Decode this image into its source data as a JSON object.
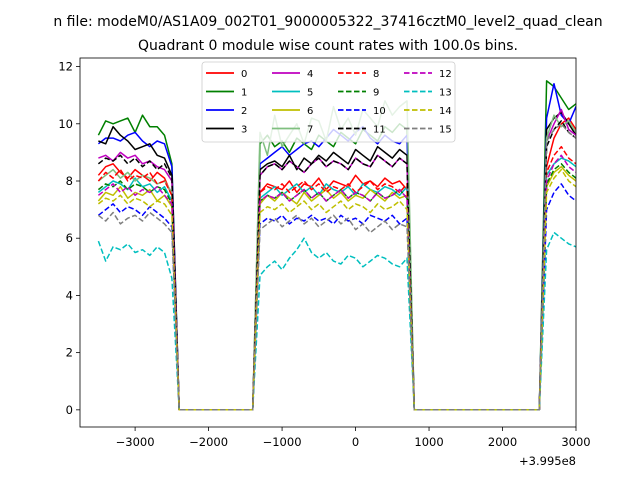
{
  "figure": {
    "suptitle": "n file: modeM0/AS1A09_002T01_9000005322_37416cztM0_level2_quad_clean",
    "title": "Quadrant 0 module wise count rates with 100.0s bins.",
    "offset_label": "+3.995e8"
  },
  "chart_data": {
    "type": "line",
    "title": "Quadrant 0 module wise count rates with 100.0s bins.",
    "xlabel": "",
    "ylabel": "",
    "x_offset": 399500000,
    "xlim": [
      -3750,
      3000
    ],
    "ylim": [
      -0.6,
      12.3
    ],
    "xticks": [
      -3000,
      -2000,
      -1000,
      0,
      1000,
      2000,
      3000
    ],
    "xtick_labels": [
      "−3000",
      "−2000",
      "−1000",
      "0",
      "1000",
      "2000",
      "3000"
    ],
    "yticks": [
      0,
      2,
      4,
      6,
      8,
      10,
      12
    ],
    "ytick_labels": [
      "0",
      "2",
      "4",
      "6",
      "8",
      "10",
      "12"
    ],
    "grid": false,
    "legend_position": "top-center",
    "legend_columns": 4,
    "segments": [
      {
        "x_start": -3500,
        "count": 11
      },
      {
        "x_start": -1300,
        "count": 21
      },
      {
        "x_start": 2600,
        "count": 8
      }
    ],
    "series": [
      {
        "name": "0",
        "color": "#ff0000",
        "dash": "solid",
        "values": [
          8.2,
          8.5,
          8.6,
          8.3,
          8.1,
          8.4,
          8.2,
          8.0,
          8.3,
          8.1,
          7.5,
          7.6,
          7.9,
          7.8,
          7.7,
          8.0,
          7.6,
          7.9,
          7.8,
          8.1,
          7.7,
          8.0,
          7.9,
          7.8,
          8.2,
          7.9,
          8.0,
          7.8,
          8.1,
          7.9,
          8.0,
          7.7,
          8.5,
          9.5,
          10.0,
          10.2,
          9.8,
          9.0,
          8.8,
          8.5
        ]
      },
      {
        "name": "1",
        "color": "#008000",
        "dash": "solid",
        "values": [
          9.6,
          10.1,
          10.0,
          10.1,
          10.2,
          9.7,
          10.3,
          9.9,
          9.9,
          9.6,
          8.6,
          9.3,
          9.6,
          9.2,
          9.4,
          9.0,
          9.5,
          9.3,
          9.1,
          9.6,
          9.4,
          9.2,
          9.7,
          9.5,
          9.3,
          9.8,
          9.6,
          9.4,
          9.9,
          9.7,
          10.0,
          9.8,
          11.5,
          11.3,
          10.9,
          10.5,
          10.7,
          11.1,
          11.6,
          10.8
        ]
      },
      {
        "name": "2",
        "color": "#0000ff",
        "dash": "solid",
        "values": [
          9.3,
          9.5,
          9.5,
          9.4,
          9.6,
          9.7,
          9.4,
          9.2,
          9.4,
          9.3,
          8.5,
          8.6,
          8.8,
          9.0,
          9.2,
          8.9,
          9.1,
          9.3,
          9.4,
          9.2,
          9.5,
          9.8,
          9.6,
          9.4,
          9.7,
          9.9,
          9.5,
          9.3,
          9.6,
          9.4,
          9.3,
          9.6,
          10.2,
          11.4,
          10.3,
          10.0,
          10.6,
          10.4,
          10.1,
          9.8
        ]
      },
      {
        "name": "3",
        "color": "#000000",
        "dash": "solid",
        "values": [
          9.4,
          9.3,
          9.9,
          9.6,
          9.4,
          9.1,
          9.2,
          9.3,
          8.9,
          8.8,
          8.2,
          8.4,
          8.6,
          8.7,
          8.5,
          8.9,
          8.4,
          8.8,
          8.6,
          8.9,
          8.7,
          9.0,
          8.8,
          8.6,
          9.1,
          8.9,
          8.7,
          9.2,
          9.0,
          8.8,
          9.1,
          8.9,
          9.8,
          10.2,
          10.4,
          10.0,
          9.6,
          9.4,
          9.2,
          9.0
        ]
      },
      {
        "name": "4",
        "color": "#bf00bf",
        "dash": "solid",
        "values": [
          8.8,
          8.9,
          8.7,
          9.0,
          8.8,
          8.9,
          8.6,
          8.7,
          8.5,
          8.4,
          8.0,
          8.2,
          8.5,
          8.6,
          8.4,
          8.7,
          8.5,
          8.3,
          8.6,
          8.8,
          8.5,
          8.7,
          8.6,
          8.4,
          8.8,
          8.6,
          8.5,
          8.9,
          8.7,
          8.5,
          8.8,
          8.6,
          9.4,
          10.0,
          10.5,
          9.8,
          9.6,
          10.1,
          9.9,
          9.5
        ]
      },
      {
        "name": "5",
        "color": "#00bfbf",
        "dash": "solid",
        "values": [
          7.6,
          7.8,
          8.0,
          7.9,
          7.7,
          8.1,
          7.8,
          7.9,
          7.6,
          7.8,
          7.3,
          7.4,
          7.6,
          7.8,
          7.5,
          7.7,
          7.9,
          7.6,
          7.8,
          7.5,
          7.9,
          7.7,
          7.6,
          7.8,
          7.5,
          7.9,
          7.7,
          7.6,
          7.8,
          7.7,
          7.5,
          7.8,
          8.2,
          8.6,
          8.8,
          8.7,
          8.5,
          8.8,
          8.7,
          8.4
        ]
      },
      {
        "name": "6",
        "color": "#bfbf00",
        "dash": "solid",
        "values": [
          7.3,
          7.6,
          7.5,
          7.8,
          7.4,
          7.6,
          7.5,
          7.7,
          7.3,
          7.5,
          7.1,
          7.2,
          7.5,
          7.3,
          7.6,
          7.4,
          7.2,
          7.6,
          7.3,
          7.5,
          7.7,
          7.4,
          7.6,
          7.3,
          7.5,
          7.4,
          7.7,
          7.5,
          7.3,
          7.6,
          7.4,
          7.5,
          7.8,
          8.3,
          8.5,
          8.2,
          8.0,
          8.4,
          8.1,
          7.9
        ]
      },
      {
        "name": "7",
        "color": "#7fbf7f",
        "dash": "solid",
        "values": [
          8.0,
          8.2,
          8.4,
          8.1,
          8.3,
          8.0,
          8.2,
          8.1,
          7.9,
          8.0,
          7.6,
          9.7,
          8.9,
          10.3,
          9.2,
          9.6,
          10.0,
          9.3,
          10.2,
          10.1,
          9.4,
          10.6,
          9.8,
          10.2,
          9.6,
          10.5,
          10.2,
          9.9,
          10.8,
          10.3,
          10.6,
          10.8,
          9.5,
          10.3,
          9.9,
          10.1,
          9.7,
          10.0,
          9.8,
          9.6
        ]
      },
      {
        "name": "8",
        "color": "#ff0000",
        "dash": "dashed",
        "values": [
          8.0,
          8.3,
          8.1,
          8.4,
          8.0,
          8.2,
          8.1,
          8.3,
          7.9,
          8.0,
          7.5,
          7.6,
          7.8,
          7.7,
          7.9,
          7.6,
          7.8,
          8.0,
          7.7,
          7.9,
          7.6,
          7.8,
          7.7,
          7.9,
          7.6,
          7.8,
          8.0,
          7.7,
          7.9,
          7.8,
          7.6,
          7.9,
          8.3,
          8.9,
          9.2,
          8.8,
          8.6,
          8.9,
          8.5,
          8.3
        ]
      },
      {
        "name": "9",
        "color": "#008000",
        "dash": "dashed",
        "values": [
          7.7,
          7.9,
          7.8,
          8.0,
          7.7,
          7.9,
          7.8,
          7.6,
          7.8,
          7.7,
          7.2,
          7.3,
          7.5,
          7.4,
          7.6,
          7.3,
          7.5,
          7.7,
          7.4,
          7.6,
          7.3,
          7.5,
          7.7,
          7.4,
          7.6,
          7.5,
          7.3,
          7.6,
          7.4,
          7.5,
          7.7,
          7.4,
          7.9,
          8.4,
          8.6,
          8.3,
          8.1,
          8.4,
          8.2,
          8.0
        ]
      },
      {
        "name": "10",
        "color": "#0000ff",
        "dash": "dashed",
        "values": [
          6.8,
          7.0,
          7.2,
          6.9,
          7.1,
          7.0,
          6.8,
          7.1,
          6.9,
          6.7,
          6.4,
          6.5,
          6.7,
          6.6,
          6.8,
          6.5,
          6.7,
          6.6,
          6.8,
          6.6,
          6.7,
          6.5,
          6.8,
          6.6,
          6.7,
          6.5,
          6.8,
          6.7,
          6.6,
          6.8,
          6.5,
          6.7,
          7.0,
          7.6,
          7.9,
          7.5,
          7.3,
          7.6,
          7.4,
          7.1
        ]
      },
      {
        "name": "11",
        "color": "#000000",
        "dash": "dashed",
        "values": [
          8.6,
          8.8,
          8.7,
          8.9,
          8.6,
          8.8,
          8.5,
          8.7,
          8.4,
          8.6,
          8.1,
          8.2,
          8.5,
          8.6,
          8.4,
          8.7,
          8.5,
          8.3,
          8.6,
          8.8,
          8.5,
          8.7,
          8.6,
          8.4,
          8.8,
          8.6,
          8.5,
          8.9,
          8.7,
          8.5,
          8.8,
          8.6,
          9.2,
          9.8,
          10.1,
          9.7,
          9.5,
          9.9,
          9.6,
          9.3
        ]
      },
      {
        "name": "12",
        "color": "#bf00bf",
        "dash": "dashed",
        "values": [
          7.5,
          7.7,
          7.9,
          7.6,
          7.8,
          7.5,
          7.7,
          7.6,
          7.8,
          7.5,
          7.2,
          7.3,
          7.5,
          7.4,
          7.6,
          7.3,
          7.5,
          7.7,
          7.4,
          7.6,
          7.3,
          7.5,
          7.7,
          7.4,
          7.6,
          7.5,
          7.3,
          7.6,
          7.4,
          7.5,
          7.7,
          7.4,
          8.0,
          8.6,
          8.9,
          8.5,
          8.3,
          8.7,
          8.4,
          8.1
        ]
      },
      {
        "name": "13",
        "color": "#00bfbf",
        "dash": "dashed",
        "values": [
          5.9,
          5.2,
          5.7,
          5.6,
          5.8,
          5.5,
          5.6,
          5.4,
          5.7,
          5.5,
          4.6,
          4.7,
          5.0,
          5.2,
          4.9,
          5.3,
          5.6,
          6.0,
          5.5,
          5.3,
          5.5,
          5.2,
          5.1,
          5.4,
          5.3,
          5.0,
          5.2,
          5.4,
          5.3,
          5.1,
          5.0,
          5.3,
          5.6,
          6.2,
          6.0,
          5.8,
          5.7,
          5.9,
          5.6,
          5.5
        ]
      },
      {
        "name": "14",
        "color": "#bfbf00",
        "dash": "dashed",
        "values": [
          7.2,
          7.4,
          7.3,
          7.5,
          7.2,
          7.4,
          7.3,
          7.1,
          7.3,
          7.2,
          6.8,
          6.9,
          7.1,
          7.0,
          7.2,
          6.9,
          7.1,
          7.3,
          7.0,
          7.2,
          6.9,
          7.1,
          7.3,
          7.0,
          7.2,
          7.1,
          6.9,
          7.2,
          7.0,
          7.1,
          7.3,
          7.0,
          7.6,
          8.1,
          8.4,
          8.0,
          7.8,
          8.2,
          7.9,
          7.7
        ]
      },
      {
        "name": "15",
        "color": "#7f7f7f",
        "dash": "dashed",
        "values": [
          6.8,
          6.6,
          6.9,
          6.5,
          6.7,
          6.8,
          6.6,
          6.9,
          6.7,
          6.5,
          6.2,
          6.3,
          6.5,
          6.7,
          6.4,
          6.6,
          6.8,
          6.5,
          6.7,
          6.4,
          6.6,
          6.8,
          6.5,
          6.7,
          6.3,
          6.5,
          6.2,
          6.4,
          6.6,
          6.3,
          6.5,
          6.4,
          9.4,
          9.8,
          10.0,
          9.7,
          9.5,
          9.8,
          9.6,
          9.3
        ]
      }
    ]
  }
}
